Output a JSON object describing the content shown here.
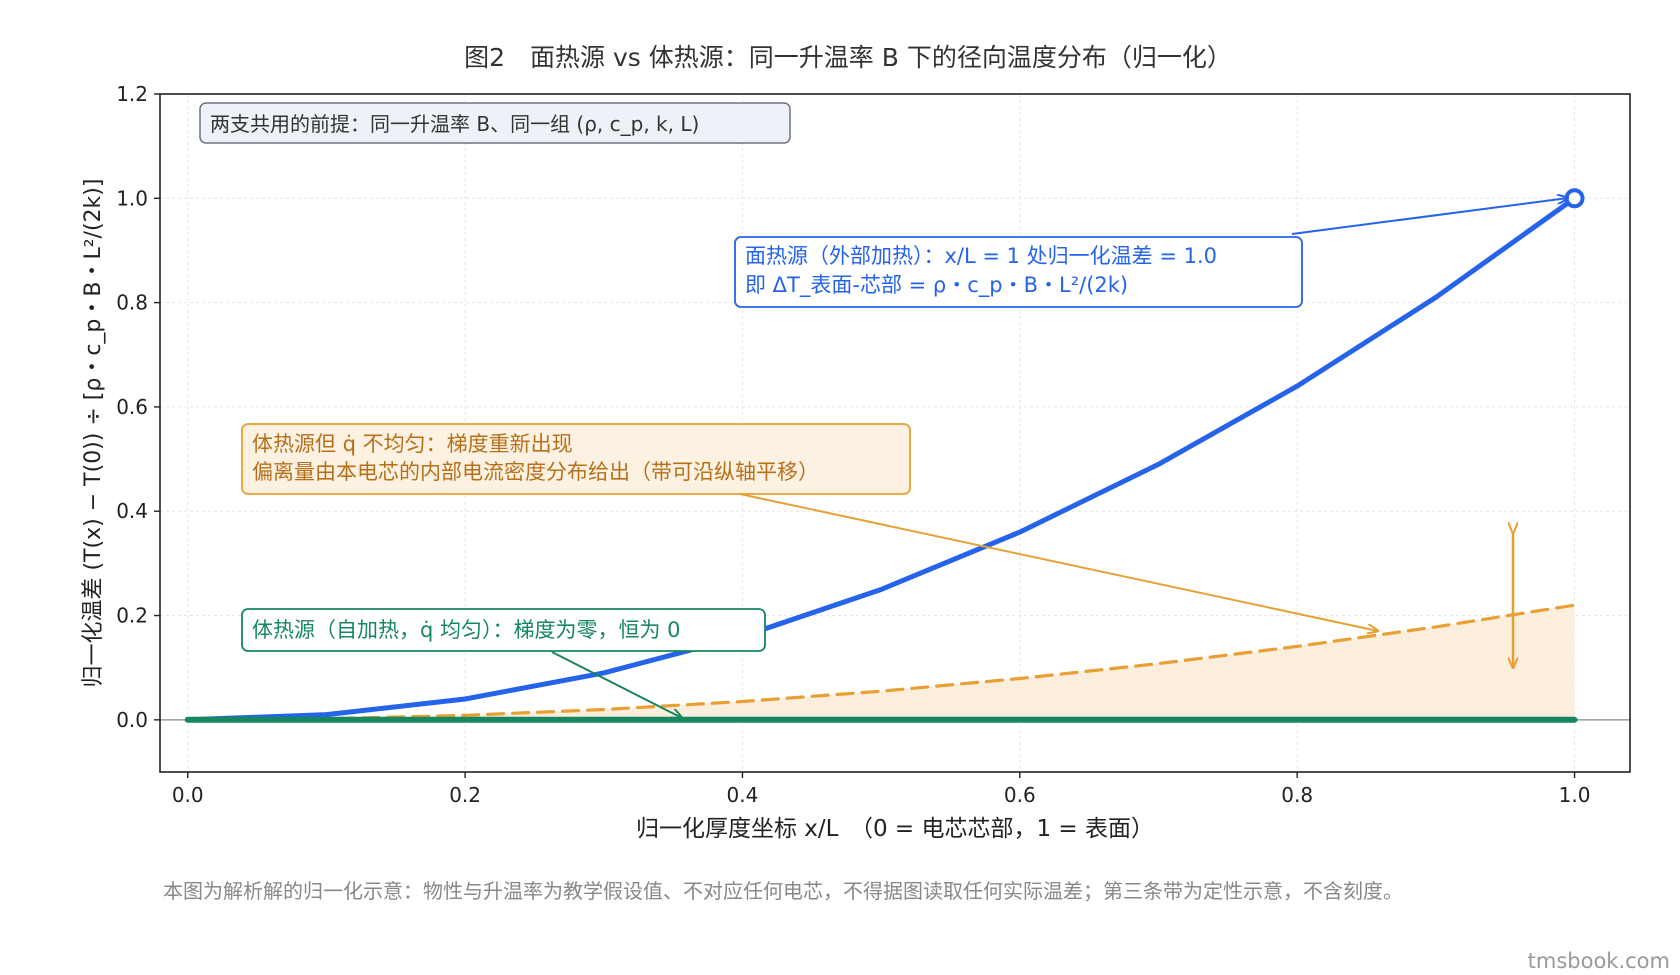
{
  "chart_data": {
    "type": "line",
    "title": "图2　面热源 vs 体热源：同一升温率 B 下的径向温度分布（归一化）",
    "xlabel": "归一化厚度坐标 x/L　（0 = 电芯芯部，1 = 表面）",
    "ylabel": "归一化温差 (T(x) − T(0)) ÷ [ρ・c_p・B・L²/(2k)]",
    "xlim": [
      -0.02,
      1.04
    ],
    "ylim": [
      -0.1,
      1.2
    ],
    "xticks": [
      "0.0",
      "0.2",
      "0.4",
      "0.6",
      "0.8",
      "1.0"
    ],
    "yticks": [
      "0.0",
      "0.2",
      "0.4",
      "0.6",
      "0.8",
      "1.0",
      "1.2"
    ],
    "grid": true,
    "x": [
      0.0,
      0.1,
      0.2,
      0.3,
      0.4,
      0.5,
      0.6,
      0.7,
      0.8,
      0.9,
      1.0
    ],
    "series": [
      {
        "values": [
          0.0,
          0.01,
          0.04,
          0.09,
          0.16,
          0.25,
          0.36,
          0.49,
          0.64,
          0.81,
          1.0
        ],
        "color": "#2563eb",
        "style": "solid",
        "marker_at_end": "open-circle"
      },
      {
        "values": [
          0.0,
          0.0022,
          0.0088,
          0.0198,
          0.0352,
          0.055,
          0.0792,
          0.1078,
          0.1408,
          0.1782,
          0.22
        ],
        "color": "#e8a035",
        "style": "dashed",
        "fill": "#fbeedd"
      },
      {
        "values": [
          0.0,
          0.0,
          0.0,
          0.0,
          0.0,
          0.0,
          0.0,
          0.0,
          0.0,
          0.0,
          0.0
        ],
        "color": "#16875f",
        "style": "solid"
      }
    ],
    "annotations": {
      "premise": "两支共用的前提：同一升温率 B、同一组 (ρ, c_p, k, L)",
      "surface_line1": "面热源（外部加热）：x/L = 1 处归一化温差 = 1.0",
      "surface_line2": "即 ΔT_表面-芯部 = ρ・c_p・B・L²/(2k)",
      "nonuniform_line1": "体热源但 q̇ 不均匀：梯度重新出现",
      "nonuniform_line2": "偏离量由本电芯的内部电流密度分布给出（带可沿纵轴平移）",
      "uniform": "体热源（自加热，q̇ 均匀）：梯度为零，恒为 0"
    },
    "colors": {
      "surface": "#2563eb",
      "nonuniform": "#e8a035",
      "uniform": "#16875f",
      "premise_border": "#6b7280"
    }
  },
  "footer_note": "本图为解析解的归一化示意：物性与升温率为教学假设值、不对应任何电芯，不得据图读取任何实际温差；第三条带为定性示意，不含刻度。",
  "watermark": "tmsbook.com"
}
